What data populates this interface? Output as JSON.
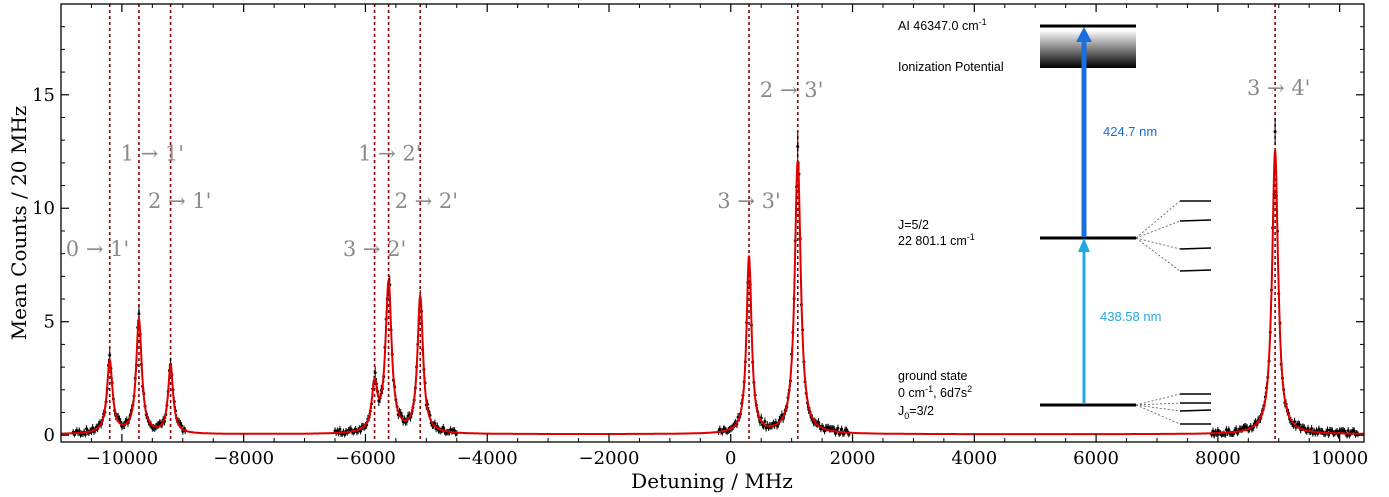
{
  "chart_data": {
    "type": "line",
    "xlabel": "Detuning / MHz",
    "ylabel": "Mean Counts / 20 MHz",
    "xlim": [
      -11000,
      10400
    ],
    "ylim": [
      -0.3,
      19.0
    ],
    "x_ticks": [
      -10000,
      -8000,
      -6000,
      -4000,
      -2000,
      0,
      2000,
      4000,
      6000,
      8000,
      10000
    ],
    "x_tick_labels": [
      "−10000",
      "−8000",
      "−6000",
      "−4000",
      "−2000",
      "0",
      "2000",
      "4000",
      "6000",
      "8000",
      "10000"
    ],
    "y_ticks": [
      0,
      5,
      10,
      15
    ],
    "y_tick_labels": [
      "0",
      "5",
      "10",
      "15"
    ],
    "fit_color": "#dd0000",
    "marker_color": "#000000",
    "peaks": [
      {
        "center": -10200,
        "height": 3.2,
        "width": 55,
        "label": "0 → 1'",
        "label_x": -10400,
        "label_y": 7.9
      },
      {
        "center": -9720,
        "height": 5.0,
        "width": 55,
        "label": "1 → 1'",
        "label_x": -9500,
        "label_y": 12.1
      },
      {
        "center": -9200,
        "height": 3.0,
        "width": 50,
        "label": "2 → 1'",
        "label_x": -9050,
        "label_y": 10.0
      },
      {
        "center": -5850,
        "height": 2.0,
        "width": 55,
        "label": "3 → 2'",
        "label_x": -5850,
        "label_y": 7.9
      },
      {
        "center": -5620,
        "height": 6.6,
        "width": 60,
        "label": "1 → 2'",
        "label_x": -5600,
        "label_y": 12.1
      },
      {
        "center": -5100,
        "height": 6.0,
        "width": 55,
        "label": "2 → 2'",
        "label_x": -5000,
        "label_y": 10.0
      },
      {
        "center": 300,
        "height": 7.8,
        "width": 50,
        "label": "3 → 3'",
        "label_x": 300,
        "label_y": 10.0
      },
      {
        "center": 1100,
        "height": 12.0,
        "width": 60,
        "label": "2 → 3'",
        "label_x": 1000,
        "label_y": 14.9
      },
      {
        "center": 8940,
        "height": 12.5,
        "width": 60,
        "label": "3 → 4'",
        "label_x": 9000,
        "label_y": 15.0
      }
    ],
    "vlines": [
      -10200,
      -9720,
      -9200,
      -5850,
      -5620,
      -5100,
      300,
      1100,
      8940
    ],
    "data_segments": [
      [
        -10800,
        -8950
      ],
      [
        -6500,
        -4500
      ],
      [
        -200,
        1950
      ],
      [
        7900,
        10300
      ]
    ]
  },
  "inset": {
    "ai_label": "AI  46347.0 cm",
    "ai_sup": "-1",
    "ip_label": "Ionization Potential",
    "blue_wavelength": "424.7 nm",
    "blue_color": "#1a6fe0",
    "j_label": "J=5/2",
    "j_energy": "22 801.1 cm",
    "j_energy_sup": "-1",
    "cyan_wavelength": "438.58 nm",
    "cyan_color": "#22a9e0",
    "gs_label": "ground state",
    "gs_line2_a": "0 cm",
    "gs_line2_sup": "-1",
    "gs_line2_b": ", 6d7s",
    "gs_line2_sup2": "2",
    "gs_line3_a": "J",
    "gs_line3_sub": "0",
    "gs_line3_b": "=3/2"
  }
}
